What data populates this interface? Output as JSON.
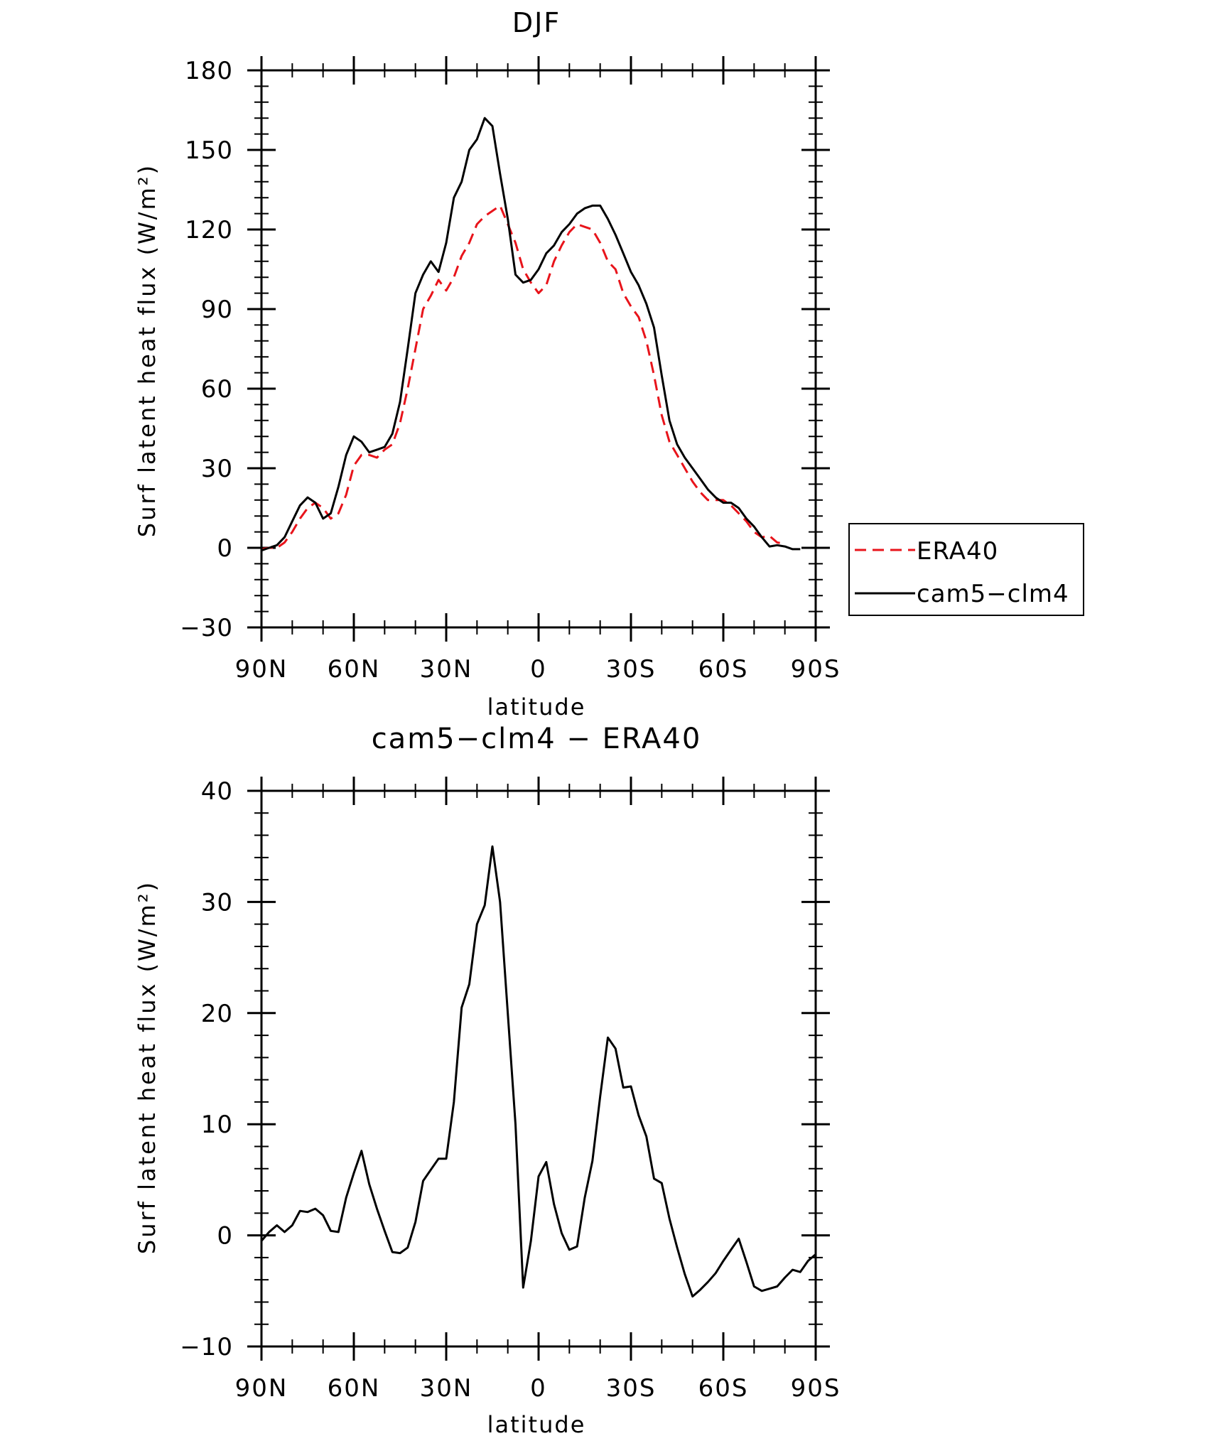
{
  "chart_data": [
    {
      "type": "line",
      "title": "DJF",
      "xlabel": "latitude",
      "ylabel": "Surf latent heat flux (W/m²)",
      "ylim": [
        -30,
        180
      ],
      "xlim": [
        90,
        -90
      ],
      "x_ticks": [
        {
          "value": 90,
          "label": "90N"
        },
        {
          "value": 60,
          "label": "60N"
        },
        {
          "value": 30,
          "label": "30N"
        },
        {
          "value": 0,
          "label": "0"
        },
        {
          "value": -30,
          "label": "30S"
        },
        {
          "value": -60,
          "label": "60S"
        },
        {
          "value": -90,
          "label": "90S"
        }
      ],
      "y_ticks": [
        {
          "value": -30,
          "label": "−30"
        },
        {
          "value": 0,
          "label": "0"
        },
        {
          "value": 30,
          "label": "30"
        },
        {
          "value": 60,
          "label": "60"
        },
        {
          "value": 90,
          "label": "90"
        },
        {
          "value": 120,
          "label": "120"
        },
        {
          "value": 150,
          "label": "150"
        },
        {
          "value": 180,
          "label": "180"
        }
      ],
      "legend_position": "right",
      "series": [
        {
          "name": "ERA40",
          "color": "#e8141b",
          "dash": "dashed",
          "points": [
            [
              90,
              -0.5
            ],
            [
              87.5,
              0
            ],
            [
              85,
              0
            ],
            [
              82.5,
              2
            ],
            [
              80,
              6
            ],
            [
              77.5,
              11
            ],
            [
              75,
              15
            ],
            [
              72.5,
              17
            ],
            [
              70,
              15
            ],
            [
              67.5,
              11
            ],
            [
              65,
              13
            ],
            [
              62.5,
              20
            ],
            [
              60,
              31
            ],
            [
              57.5,
              35
            ],
            [
              55,
              35
            ],
            [
              52.5,
              34
            ],
            [
              50,
              37
            ],
            [
              47.5,
              39
            ],
            [
              45,
              47
            ],
            [
              42.5,
              60
            ],
            [
              40,
              75
            ],
            [
              37.5,
              90
            ],
            [
              35,
              95
            ],
            [
              32.5,
              101
            ],
            [
              30,
              97
            ],
            [
              27.5,
              102
            ],
            [
              25,
              110
            ],
            [
              22.5,
              115
            ],
            [
              20,
              122
            ],
            [
              17.5,
              125
            ],
            [
              15,
              127
            ],
            [
              12.5,
              129
            ],
            [
              10,
              122
            ],
            [
              7.5,
              115
            ],
            [
              5,
              105
            ],
            [
              2.5,
              100
            ],
            [
              0,
              96
            ],
            [
              -2.5,
              99
            ],
            [
              -5,
              108
            ],
            [
              -7.5,
              114
            ],
            [
              -10,
              119
            ],
            [
              -12.5,
              122
            ],
            [
              -15,
              121
            ],
            [
              -17.5,
              120
            ],
            [
              -20,
              115
            ],
            [
              -22.5,
              108
            ],
            [
              -25,
              105
            ],
            [
              -27.5,
              96
            ],
            [
              -30,
              91
            ],
            [
              -32.5,
              87
            ],
            [
              -35,
              78
            ],
            [
              -37.5,
              65
            ],
            [
              -40,
              50
            ],
            [
              -42.5,
              40
            ],
            [
              -45,
              35
            ],
            [
              -47.5,
              30
            ],
            [
              -50,
              25
            ],
            [
              -52.5,
              21
            ],
            [
              -55,
              18
            ],
            [
              -57.5,
              18
            ],
            [
              -60,
              18
            ],
            [
              -62.5,
              16
            ],
            [
              -65,
              13
            ],
            [
              -67.5,
              10
            ],
            [
              -70,
              6
            ],
            [
              -72.5,
              4
            ],
            [
              -75,
              4.5
            ],
            [
              -77.5,
              2
            ],
            [
              -80,
              1.5
            ]
          ]
        },
        {
          "name": "cam5−clm4",
          "color": "#000000",
          "dash": "solid",
          "points": [
            [
              90,
              -1
            ],
            [
              87.5,
              0
            ],
            [
              85,
              1
            ],
            [
              82.5,
              4
            ],
            [
              80,
              10
            ],
            [
              77.5,
              16
            ],
            [
              75,
              19
            ],
            [
              72.5,
              17
            ],
            [
              70,
              11
            ],
            [
              67.5,
              13
            ],
            [
              65,
              23
            ],
            [
              62.5,
              35
            ],
            [
              60,
              42
            ],
            [
              57.5,
              40
            ],
            [
              55,
              36
            ],
            [
              52.5,
              37
            ],
            [
              50,
              38
            ],
            [
              47.5,
              43
            ],
            [
              45,
              55
            ],
            [
              42.5,
              75
            ],
            [
              40,
              96
            ],
            [
              37.5,
              103
            ],
            [
              35,
              108
            ],
            [
              32.5,
              104
            ],
            [
              30,
              115
            ],
            [
              27.5,
              132
            ],
            [
              25,
              138
            ],
            [
              22.5,
              150
            ],
            [
              20,
              154
            ],
            [
              17.5,
              162
            ],
            [
              15,
              159
            ],
            [
              12.5,
              141
            ],
            [
              10,
              124
            ],
            [
              7.5,
              103
            ],
            [
              5,
              100
            ],
            [
              2.5,
              101
            ],
            [
              0,
              105
            ],
            [
              -2.5,
              111
            ],
            [
              -5,
              114
            ],
            [
              -7.5,
              119
            ],
            [
              -10,
              122
            ],
            [
              -12.5,
              126
            ],
            [
              -15,
              128
            ],
            [
              -17.5,
              129
            ],
            [
              -20,
              129
            ],
            [
              -22.5,
              124
            ],
            [
              -25,
              118
            ],
            [
              -27.5,
              111
            ],
            [
              -30,
              104
            ],
            [
              -32.5,
              99
            ],
            [
              -35,
              92
            ],
            [
              -37.5,
              83
            ],
            [
              -40,
              65
            ],
            [
              -42.5,
              48
            ],
            [
              -45,
              39
            ],
            [
              -47.5,
              34
            ],
            [
              -50,
              30
            ],
            [
              -52.5,
              26
            ],
            [
              -55,
              22
            ],
            [
              -57.5,
              19
            ],
            [
              -60,
              17
            ],
            [
              -62.5,
              17
            ],
            [
              -65,
              15
            ],
            [
              -67.5,
              11
            ],
            [
              -70,
              8
            ],
            [
              -72.5,
              4
            ],
            [
              -75,
              0.5
            ],
            [
              -77.5,
              1
            ],
            [
              -80,
              0.5
            ],
            [
              -82.5,
              -0.5
            ],
            [
              -85,
              -0.5
            ]
          ]
        }
      ]
    },
    {
      "type": "line",
      "title": "cam5−clm4 − ERA40",
      "xlabel": "latitude",
      "ylabel": "Surf latent heat flux (W/m²)",
      "ylim": [
        -10,
        40
      ],
      "xlim": [
        90,
        -90
      ],
      "x_ticks": [
        {
          "value": 90,
          "label": "90N"
        },
        {
          "value": 60,
          "label": "60N"
        },
        {
          "value": 30,
          "label": "30N"
        },
        {
          "value": 0,
          "label": "0"
        },
        {
          "value": -30,
          "label": "30S"
        },
        {
          "value": -60,
          "label": "60S"
        },
        {
          "value": -90,
          "label": "90S"
        }
      ],
      "y_ticks": [
        {
          "value": -10,
          "label": "−10"
        },
        {
          "value": 0,
          "label": "0"
        },
        {
          "value": 10,
          "label": "10"
        },
        {
          "value": 20,
          "label": "20"
        },
        {
          "value": 30,
          "label": "30"
        },
        {
          "value": 40,
          "label": "40"
        }
      ],
      "series": [
        {
          "color": "#000000",
          "dash": "solid",
          "points": [
            [
              90,
              -0.5
            ],
            [
              87.5,
              0.3
            ],
            [
              85,
              0.9
            ],
            [
              82.5,
              0.3
            ],
            [
              80,
              0.9
            ],
            [
              77.5,
              2.2
            ],
            [
              75,
              2.1
            ],
            [
              72.5,
              2.4
            ],
            [
              70,
              1.8
            ],
            [
              67.5,
              0.4
            ],
            [
              65,
              0.3
            ],
            [
              62.5,
              3.4
            ],
            [
              60,
              5.6
            ],
            [
              57.5,
              7.6
            ],
            [
              55,
              4.6
            ],
            [
              52.5,
              2.4
            ],
            [
              50,
              0.4
            ],
            [
              47.5,
              -1.5
            ],
            [
              45,
              -1.6
            ],
            [
              42.5,
              -1.1
            ],
            [
              40,
              1.2
            ],
            [
              37.5,
              4.9
            ],
            [
              35,
              5.9
            ],
            [
              32.5,
              6.9
            ],
            [
              30,
              6.9
            ],
            [
              27.5,
              12
            ],
            [
              25,
              20.5
            ],
            [
              22.5,
              22.6
            ],
            [
              20,
              28
            ],
            [
              17.5,
              29.7
            ],
            [
              15,
              35
            ],
            [
              12.5,
              30
            ],
            [
              7.5,
              10
            ],
            [
              5,
              -4.7
            ],
            [
              2.5,
              -0.5
            ],
            [
              0,
              5.3
            ],
            [
              -2.5,
              6.6
            ],
            [
              -5,
              2.8
            ],
            [
              -7.5,
              0.2
            ],
            [
              -10,
              -1.3
            ],
            [
              -12.5,
              -1
            ],
            [
              -15,
              3.4
            ],
            [
              -17.5,
              6.7
            ],
            [
              -20,
              12.5
            ],
            [
              -22.5,
              17.8
            ],
            [
              -25,
              16.8
            ],
            [
              -27.5,
              13.3
            ],
            [
              -30,
              13.4
            ],
            [
              -32.5,
              10.8
            ],
            [
              -35,
              8.9
            ],
            [
              -37.5,
              5.1
            ],
            [
              -40,
              4.7
            ],
            [
              -42.5,
              1.5
            ],
            [
              -45,
              -1.1
            ],
            [
              -47.5,
              -3.5
            ],
            [
              -50,
              -5.5
            ],
            [
              -52.5,
              -4.9
            ],
            [
              -55,
              -4.2
            ],
            [
              -57.5,
              -3.4
            ],
            [
              -60,
              -2.3
            ],
            [
              -62.5,
              -1.3
            ],
            [
              -65,
              -0.3
            ],
            [
              -67.5,
              -2.4
            ],
            [
              -70,
              -4.6
            ],
            [
              -72.5,
              -5
            ],
            [
              -75,
              -4.8
            ],
            [
              -77.5,
              -4.6
            ],
            [
              -80,
              -3.8
            ],
            [
              -82.5,
              -3.1
            ],
            [
              -85,
              -3.3
            ],
            [
              -87.5,
              -2.3
            ],
            [
              -90,
              -1.7
            ]
          ]
        }
      ]
    }
  ]
}
